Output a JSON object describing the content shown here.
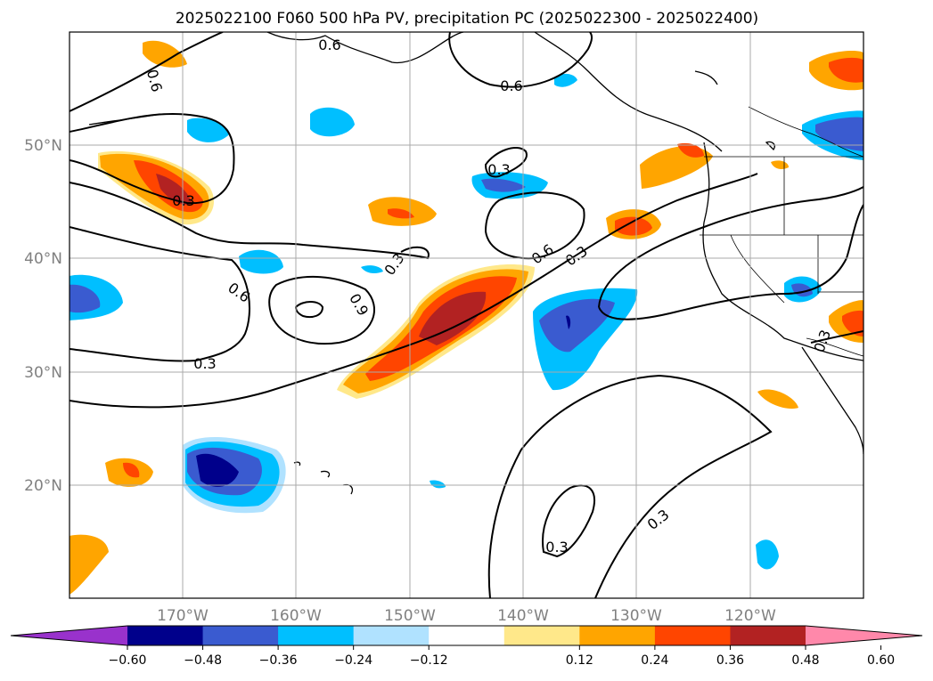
{
  "title": "2025022100 F060 500 hPa PV, precipitation PC (2025022300 - 2025022400)",
  "map": {
    "lat_labels": [
      "50°N",
      "40°N",
      "30°N",
      "20°N"
    ],
    "lon_labels": [
      "170°W",
      "160°W",
      "150°W",
      "140°W",
      "130°W",
      "120°W"
    ],
    "grid_color": "#aaaaaa",
    "coast_color": "#000000"
  },
  "colorbar": {
    "tick_labels": [
      "−0.60",
      "−0.48",
      "−0.36",
      "−0.24",
      "−0.12",
      "0.12",
      "0.24",
      "0.36",
      "0.48",
      "0.60"
    ],
    "under_color": "#9932cc",
    "over_color": "#ff88aa",
    "colors": [
      "#00008b",
      "#3a5bd0",
      "#00bfff",
      "#b0e2ff",
      "#ffffff",
      "#ffe88a",
      "#ffa500",
      "#ff4500",
      "#b22222"
    ]
  },
  "pv_contours": {
    "labels": [
      "0.6",
      "0.6",
      "0.6",
      "0.3",
      "0.3",
      "0.3",
      "0.6",
      "0.3",
      "0.6",
      "0.9",
      "0.3",
      "0.3",
      "0.3",
      "0.3"
    ]
  },
  "anomaly_colors": {
    "pos1": "#ffe88a",
    "pos2": "#ffa500",
    "pos3": "#ff4500",
    "pos4": "#b22222",
    "neg1": "#b0e2ff",
    "neg2": "#00bfff",
    "neg3": "#3a5bd0",
    "neg4": "#00008b"
  }
}
